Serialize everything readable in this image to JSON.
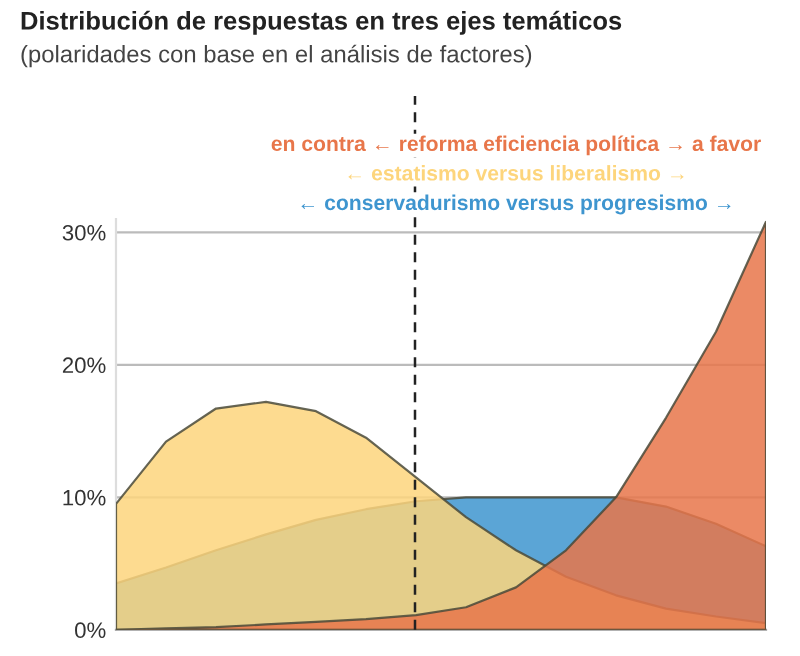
{
  "chart_data": {
    "type": "area",
    "title": "Distribución de respuestas en tres ejes temáticos",
    "subtitle": "(polaridades con base en el análisis de factores)",
    "categories": [
      null,
      null,
      null,
      null,
      null,
      null,
      null,
      null,
      null,
      null,
      null,
      null,
      null,
      null
    ],
    "series": [
      {
        "name": "en contra ← reforma eficiencia política → a favor",
        "color": "#e8764a",
        "values": [
          0,
          0.1,
          0.2,
          0.4,
          0.6,
          0.8,
          1.1,
          1.7,
          3.2,
          6,
          10,
          16,
          22.5,
          30.8
        ]
      },
      {
        "name": "← estatismo versus liberalismo →",
        "color": "#fdd57c",
        "values": [
          9.5,
          14.2,
          16.7,
          17.2,
          16.5,
          14.5,
          11.5,
          8.5,
          6,
          4,
          2.6,
          1.6,
          1,
          0.5
        ]
      },
      {
        "name": "← conservadurismo versus progresismo →",
        "color": "#3e95cf",
        "values": [
          3.5,
          4.7,
          6,
          7.2,
          8.3,
          9.1,
          9.7,
          10,
          10,
          10,
          10,
          9.3,
          8,
          6.3
        ]
      }
    ],
    "ylim": [
      0,
      31
    ],
    "yticks": [
      {
        "value": 0,
        "label": "0%"
      },
      {
        "value": 10,
        "label": "10%"
      },
      {
        "value": 20,
        "label": "20%"
      },
      {
        "value": 30,
        "label": "30%"
      }
    ],
    "grid": "y"
  }
}
